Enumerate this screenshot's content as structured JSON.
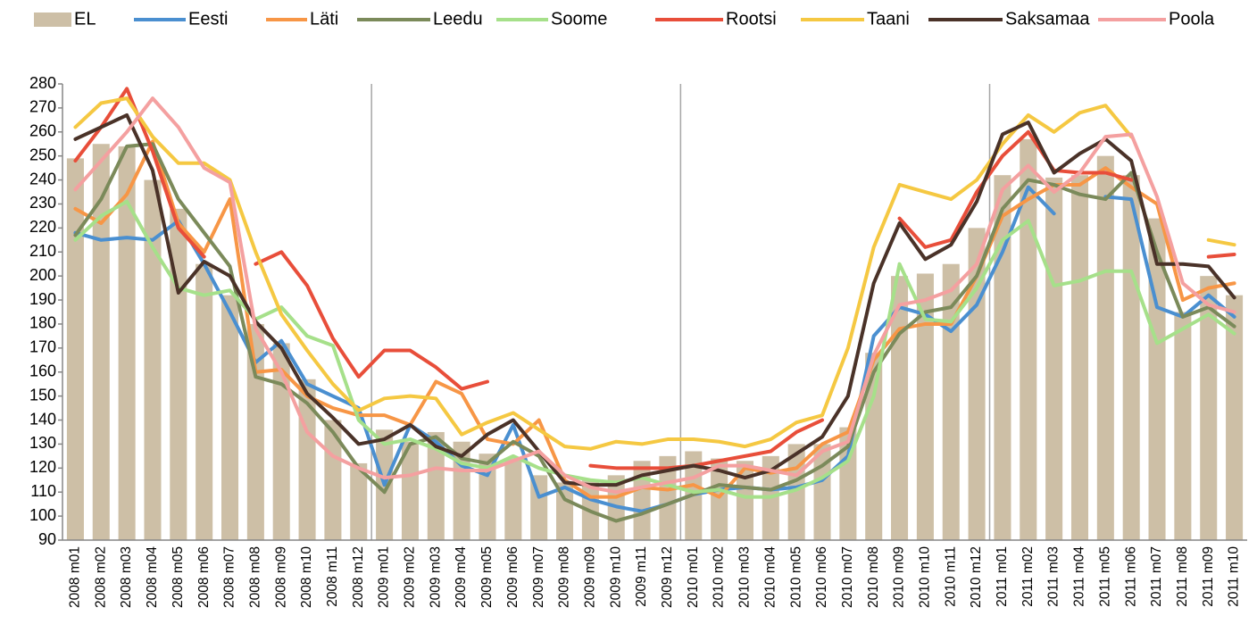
{
  "chart_data": {
    "type": "bar-line",
    "categories": [
      "2008 m01",
      "2008 m02",
      "2008 m03",
      "2008 m04",
      "2008 m05",
      "2008 m06",
      "2008 m07",
      "2008 m08",
      "2008 m09",
      "2008 m10",
      "2008 m11",
      "2008 m12",
      "2009 m01",
      "2009 m02",
      "2009 m03",
      "2009 m04",
      "2009 m05",
      "2009 m06",
      "2009 m07",
      "2009 m08",
      "2009 m09",
      "2009 m10",
      "2009 m11",
      "2009 m12",
      "2010 m01",
      "2010 m02",
      "2010 m03",
      "2010 m04",
      "2010 m05",
      "2010 m06",
      "2010 m07",
      "2010 m08",
      "2010 m09",
      "2010 m10",
      "2010 m11",
      "2010 m12",
      "2011 m01",
      "2011 m02",
      "2011 m03",
      "2011 m04",
      "2011 m05",
      "2011 m06",
      "2011 m07",
      "2011 m08",
      "2011 m09",
      "2011 m10"
    ],
    "series": [
      {
        "name": "EL",
        "kind": "bar",
        "color": "#cdbfa6",
        "values": [
          249,
          255,
          254,
          240,
          228,
          205,
          192,
          180,
          172,
          157,
          140,
          122,
          136,
          131,
          135,
          131,
          126,
          124,
          117,
          114,
          115,
          117,
          123,
          125,
          127,
          124,
          123,
          125,
          130,
          130,
          137,
          168,
          200,
          201,
          205,
          220,
          242,
          257,
          241,
          242,
          250,
          242,
          224,
          185,
          200,
          192
        ]
      },
      {
        "name": "Eesti",
        "kind": "line",
        "color": "#4a8fd0",
        "values": [
          218,
          215,
          216,
          215,
          223,
          205,
          185,
          164,
          173,
          155,
          150,
          145,
          113,
          138,
          131,
          121,
          117,
          138,
          108,
          112,
          107,
          104,
          102,
          105,
          109,
          111,
          112,
          111,
          112,
          115,
          125,
          175,
          187,
          184,
          177,
          188,
          210,
          237,
          226,
          null,
          233,
          232,
          187,
          183,
          192,
          183
        ]
      },
      {
        "name": "Läti",
        "kind": "line",
        "color": "#f79646",
        "values": [
          228,
          222,
          234,
          256,
          222,
          210,
          232,
          160,
          161,
          150,
          145,
          142,
          142,
          138,
          156,
          151,
          132,
          130,
          140,
          115,
          108,
          108,
          112,
          111,
          113,
          108,
          120,
          118,
          120,
          130,
          135,
          165,
          178,
          180,
          180,
          200,
          225,
          232,
          238,
          238,
          245,
          237,
          230,
          190,
          195,
          197
        ]
      },
      {
        "name": "Leedu",
        "kind": "line",
        "color": "#7b8a5a",
        "values": [
          217,
          232,
          254,
          255,
          232,
          218,
          204,
          158,
          155,
          147,
          135,
          120,
          110,
          130,
          133,
          124,
          122,
          131,
          125,
          107,
          102,
          98,
          101,
          105,
          109,
          113,
          112,
          111,
          115,
          121,
          129,
          160,
          176,
          185,
          187,
          200,
          228,
          240,
          238,
          234,
          232,
          243,
          210,
          183,
          187,
          179
        ]
      },
      {
        "name": "Soome",
        "kind": "line",
        "color": "#a6e08a",
        "values": [
          215,
          225,
          231,
          212,
          195,
          192,
          194,
          182,
          187,
          175,
          171,
          140,
          130,
          132,
          128,
          122,
          120,
          125,
          120,
          117,
          115,
          114,
          116,
          113,
          110,
          111,
          108,
          108,
          111,
          116,
          123,
          150,
          205,
          182,
          181,
          195,
          215,
          223,
          196,
          198,
          202,
          202,
          172,
          178,
          184,
          176
        ]
      },
      {
        "name": "Rootsi",
        "kind": "line",
        "color": "#e84e3a",
        "values": [
          248,
          262,
          278,
          252,
          220,
          208,
          null,
          205,
          210,
          196,
          174,
          158,
          169,
          169,
          162,
          153,
          156,
          null,
          null,
          null,
          121,
          120,
          120,
          120,
          121,
          123,
          125,
          127,
          135,
          140,
          null,
          null,
          224,
          212,
          215,
          235,
          250,
          260,
          244,
          243,
          243,
          240,
          null,
          null,
          208,
          209
        ]
      },
      {
        "name": "Taani",
        "kind": "line",
        "color": "#f5c842",
        "values": [
          262,
          272,
          274,
          258,
          247,
          247,
          240,
          210,
          184,
          169,
          155,
          144,
          149,
          150,
          149,
          134,
          139,
          143,
          136,
          129,
          128,
          131,
          130,
          132,
          132,
          131,
          129,
          132,
          139,
          142,
          170,
          212,
          238,
          235,
          232,
          240,
          255,
          267,
          260,
          268,
          271,
          258,
          null,
          null,
          215,
          213
        ]
      },
      {
        "name": "Saksamaa",
        "kind": "line",
        "color": "#4a3228",
        "values": [
          257,
          262,
          267,
          244,
          193,
          206,
          200,
          181,
          170,
          151,
          141,
          130,
          132,
          138,
          129,
          125,
          134,
          140,
          127,
          114,
          113,
          113,
          117,
          119,
          121,
          119,
          116,
          119,
          126,
          133,
          150,
          197,
          222,
          207,
          213,
          231,
          259,
          264,
          243,
          251,
          257,
          248,
          205,
          205,
          204,
          191
        ]
      },
      {
        "name": "Poola",
        "kind": "line",
        "color": "#f4a0a0",
        "values": [
          236,
          248,
          260,
          274,
          262,
          245,
          239,
          178,
          160,
          135,
          125,
          120,
          116,
          117,
          120,
          119,
          119,
          123,
          127,
          117,
          112,
          110,
          112,
          114,
          116,
          121,
          121,
          119,
          117,
          127,
          131,
          167,
          188,
          190,
          194,
          205,
          236,
          246,
          235,
          243,
          258,
          259,
          233,
          197,
          188,
          185
        ]
      }
    ],
    "ylim": [
      90,
      280
    ],
    "yticks": [
      90,
      100,
      110,
      120,
      130,
      140,
      150,
      160,
      170,
      180,
      190,
      200,
      210,
      220,
      230,
      240,
      250,
      260,
      270,
      280
    ],
    "legend": "top"
  }
}
